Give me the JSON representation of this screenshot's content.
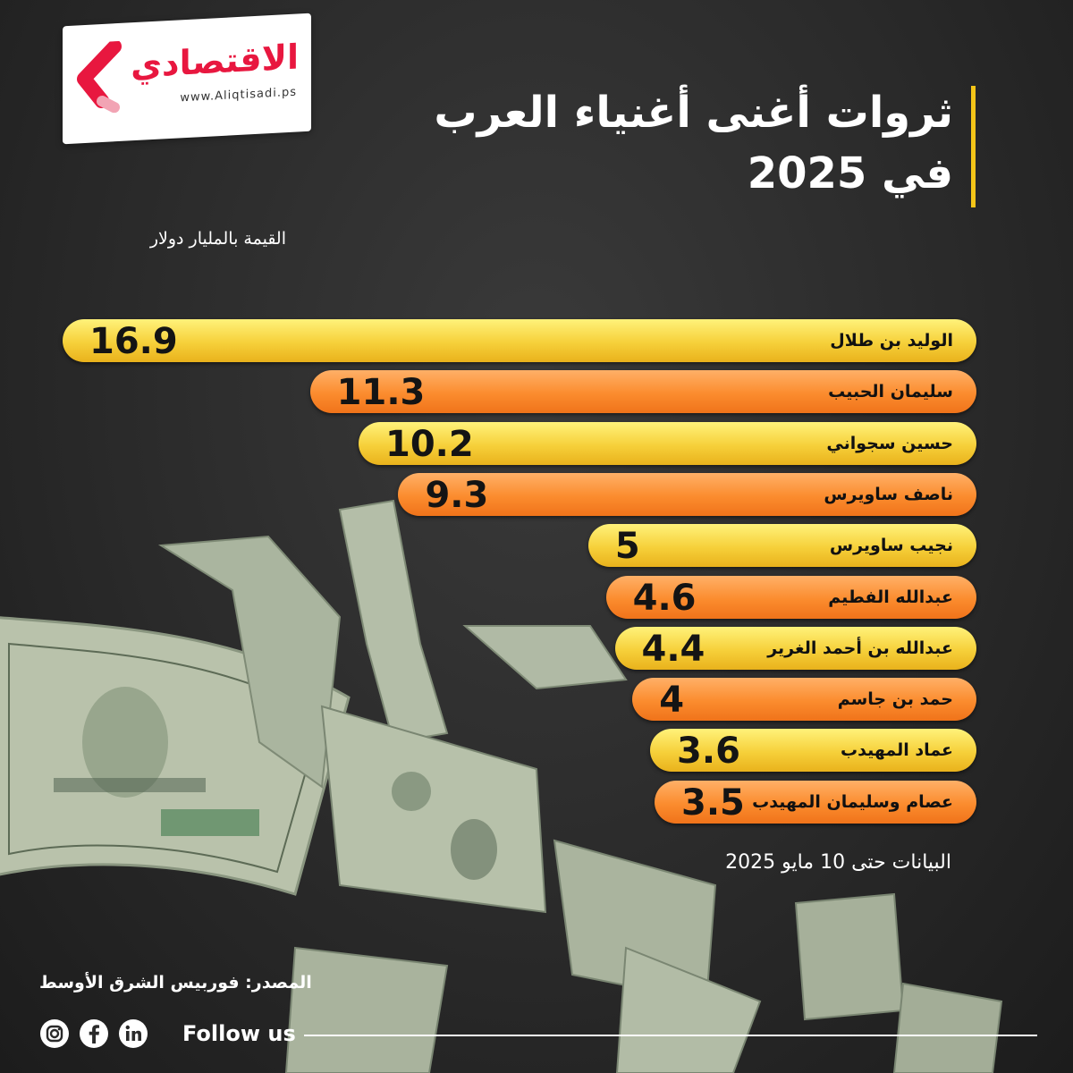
{
  "logo": {
    "name": "الاقتصادي",
    "url": "www.Aliqtisadi.ps",
    "brand_color": "#e8173f"
  },
  "header": {
    "title_line1": "ثروات أغنى أغنياء العرب",
    "title_line2": "في 2025",
    "accent_color": "#f5c518"
  },
  "unit_note": "القيمة بالمليار دولار",
  "chart_data": {
    "type": "bar",
    "orientation": "horizontal",
    "categories": [
      "الوليد بن طلال",
      "سليمان الحبيب",
      "حسين سجواني",
      "ناصف ساويرس",
      "نجيب ساويرس",
      "عبدالله الفطيم",
      "عبدالله بن أحمد الغرير",
      "حمد بن جاسم",
      "عماد المهيدب",
      "عصام وسليمان المهيدب"
    ],
    "values": [
      16.9,
      11.3,
      10.2,
      9.3,
      5,
      4.6,
      4.4,
      4,
      3.6,
      3.5
    ],
    "value_labels": [
      "16.9",
      "11.3",
      "10.2",
      "9.3",
      "5",
      "4.6",
      "4.4",
      "4",
      "3.6",
      "3.5"
    ],
    "colors": [
      "#f6d03a",
      "#fb8c2e"
    ],
    "ylabel": "القيمة بالمليار دولار",
    "grid": false,
    "legend": "none"
  },
  "date_note": "البيانات حتى 10 مايو 2025",
  "source": "المصدر: فوربيس الشرق الأوسط",
  "footer": {
    "follow_label": "Follow us",
    "social_icons": [
      "instagram-icon",
      "facebook-icon",
      "linkedin-icon"
    ]
  }
}
